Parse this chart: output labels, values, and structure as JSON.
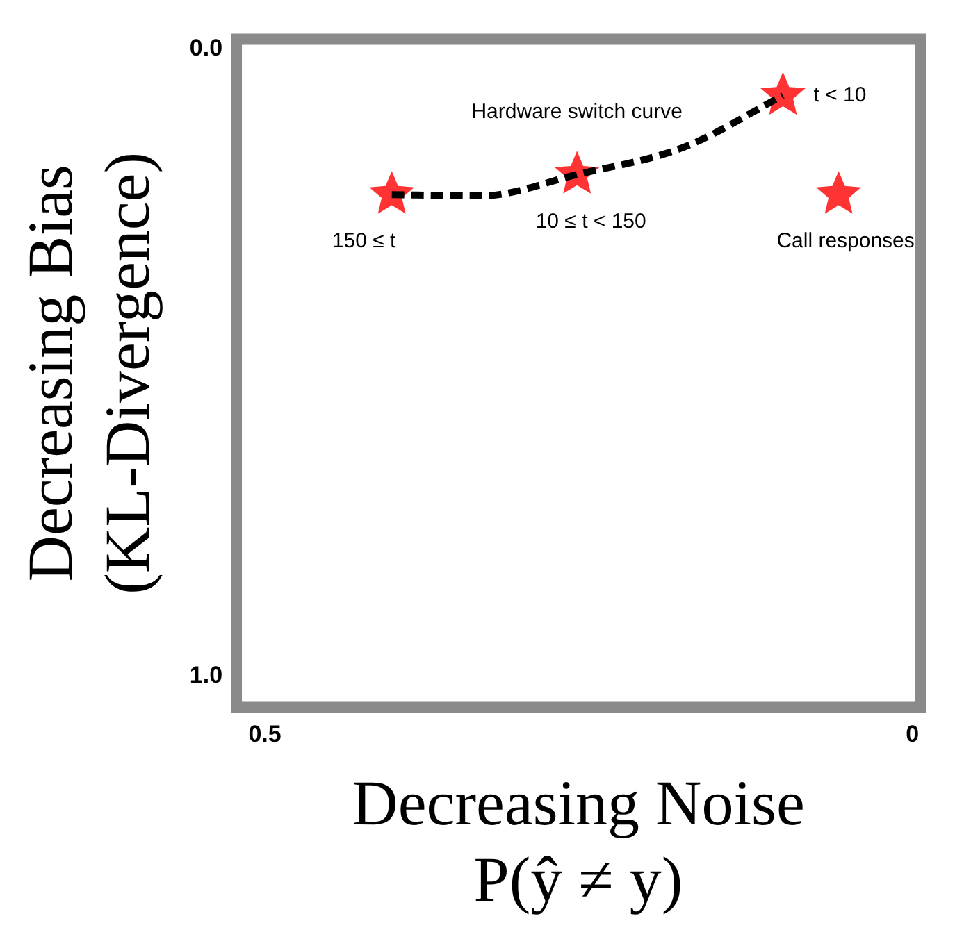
{
  "chart_data": {
    "type": "scatter",
    "xlabel": "Decreasing Noise\nP(ŷ ≠ y)",
    "ylabel": "Decreasing Bias\n(KL-Divergence)",
    "xlim": [
      0.522,
      -0.006
    ],
    "xticks": [
      0.5,
      0
    ],
    "ylim": [
      1.05,
      -0.016
    ],
    "yticks": [
      {
        "value": 0,
        "label": "0.0"
      },
      {
        "value": 1,
        "label": "1.0"
      }
    ],
    "grid": false,
    "legend": false,
    "marker": "star",
    "series": [
      {
        "type": "line",
        "name": "Hardware switch curve",
        "color": "#000000",
        "line_style": "dashed",
        "marker": "none",
        "x": [
          0.402,
          0.333,
          0.259,
          0.176,
          0.1
        ],
        "values": [
          0.232,
          0.234,
          0.2,
          0.156,
          0.074
        ]
      },
      {
        "color": "#ff3333",
        "x": [
          0.402,
          0.259,
          0.1,
          0.057
        ],
        "values": [
          0.232,
          0.2,
          0.074,
          0.232
        ]
      }
    ],
    "annotations": [
      {
        "text": "150 ≤ t",
        "x": 0.402,
        "y": 0.232
      },
      {
        "text": "10 ≤ t < 150",
        "x": 0.259,
        "y": 0.2
      },
      {
        "text": "t < 10",
        "x": 0.1,
        "y": 0.074
      },
      {
        "text": "Call responses",
        "x": 0.057,
        "y": 0.232
      }
    ]
  }
}
